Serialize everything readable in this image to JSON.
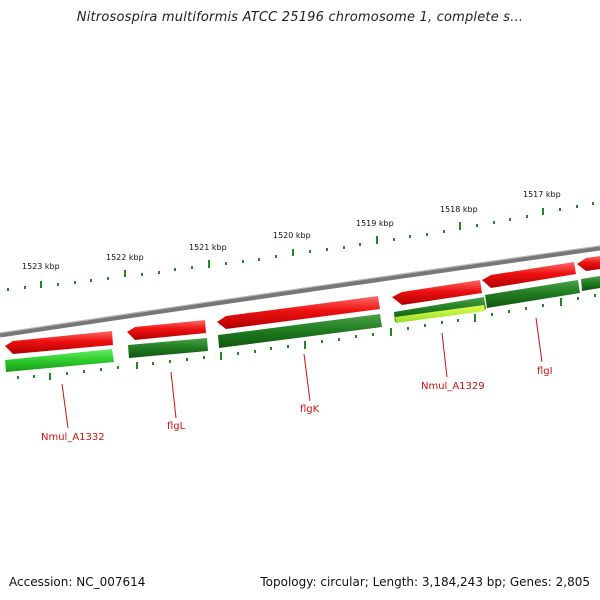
{
  "title": "Nitrosospira multiformis ATCC 25196 chromosome 1, complete s...",
  "footer": {
    "accession": "Accession: NC_007614",
    "summary": "Topology: circular; Length: 3,184,243 bp; Genes: 2,805"
  },
  "colors": {
    "forward_gene": "#ee1111",
    "reverse_gene_dark": "#1f7a1f",
    "reverse_gene_light": "#33cc33",
    "reverse_gene_yellow": "#bbee33",
    "backbone": "#8a8a8a",
    "tick": "#228822",
    "gene_label": "#cc1111"
  },
  "chart_data": {
    "type": "genome-map",
    "kbp_ticks": [
      {
        "kbp": 1523,
        "label": "1523 kbp"
      },
      {
        "kbp": 1522,
        "label": "1522 kbp"
      },
      {
        "kbp": 1521,
        "label": "1521 kbp"
      },
      {
        "kbp": 1520,
        "label": "1520 kbp"
      },
      {
        "kbp": 1519,
        "label": "1519 kbp"
      },
      {
        "kbp": 1518,
        "label": "1518 kbp"
      },
      {
        "kbp": 1517,
        "label": "1517 kbp"
      }
    ],
    "gene_labels": [
      "Nmul_A1332",
      "flgL",
      "flgK",
      "Nmul_A1329",
      "flgI"
    ]
  }
}
